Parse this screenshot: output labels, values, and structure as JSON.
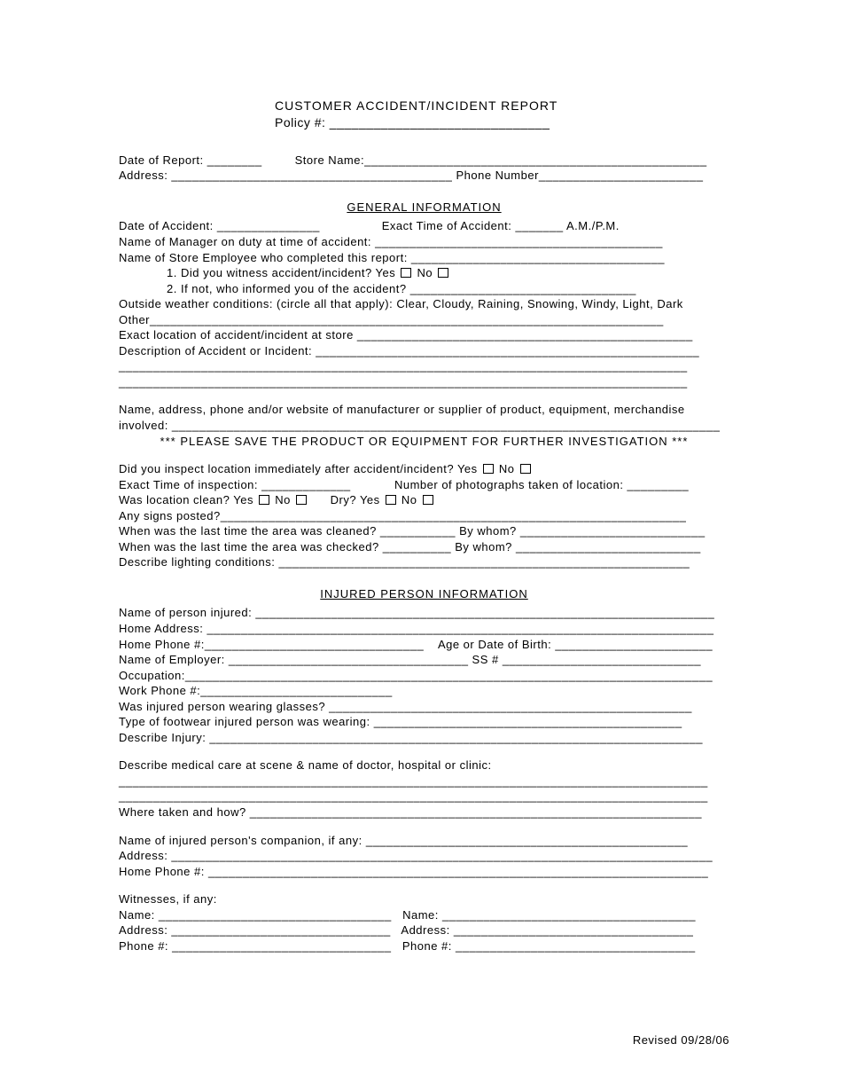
{
  "title": "CUSTOMER ACCIDENT/INCIDENT REPORT",
  "policy_label": "Policy #: ______________________________",
  "header": {
    "date_of_report": "Date of Report: ________",
    "store_name": "Store Name:__________________________________________________",
    "address": "Address: _________________________________________",
    "phone": "Phone Number________________________"
  },
  "gen_title": "GENERAL INFORMATION",
  "gen": {
    "date_accident": "Date of Accident: _______________",
    "exact_time": "Exact Time of Accident: _______ A.M./P.M.",
    "manager": "Name of Manager on duty at time of accident: __________________________________________",
    "employee": "Name of Store Employee who completed this report: _____________________________________",
    "q1_prefix": "1. Did you witness accident/incident?  Yes",
    "q1_no": "No",
    "q2": "2. If not, who informed you of the accident? _________________________________",
    "weather": "Outside weather conditions: (circle all that apply): Clear, Cloudy, Raining, Snowing, Windy, Light, Dark",
    "other": "Other___________________________________________________________________________",
    "location": "Exact location of accident/incident at store _________________________________________________",
    "desc": "Description of Accident or Incident: ________________________________________________________",
    "line1": "___________________________________________________________________________________",
    "line2": "___________________________________________________________________________________",
    "mfr1": "Name, address, phone and/or website of manufacturer or supplier of product, equipment, merchandise",
    "mfr2": "involved: ________________________________________________________________________________",
    "save": "*** PLEASE SAVE THE PRODUCT OR EQUIPMENT FOR FURTHER INVESTIGATION ***",
    "inspect_prefix": "Did you inspect location immediately after accident/incident?  Yes",
    "inspect_no": "No",
    "time_insp": "Exact Time of inspection: _____________",
    "photos": "Number of photographs taken of location: _________",
    "clean_prefix": "Was location clean?  Yes",
    "clean_no": "No",
    "dry_prefix": "Dry?  Yes",
    "dry_no": "No",
    "signs": "Any signs posted?____________________________________________________________________",
    "cleaned": "When was the last time the area was cleaned? ___________   By whom? ___________________________",
    "checked": "When was the last time the area was checked? __________   By whom? ___________________________",
    "lighting": "Describe lighting conditions: ____________________________________________________________"
  },
  "inj_title": "INJURED PERSON INFORMATION",
  "inj": {
    "name": "Name of person injured: ___________________________________________________________________",
    "addr": "Home Address: __________________________________________________________________________",
    "phone": "Home Phone #:________________________________",
    "age": "Age or Date of Birth: _______________________",
    "employer": "Name of Employer: ___________________________________  SS # _____________________________",
    "occ": "Occupation:_____________________________________________________________________________",
    "work": "Work Phone #:____________________________",
    "glasses": "Was injured person wearing glasses? _____________________________________________________",
    "footwear": "Type of footwear injured person was wearing: _____________________________________________",
    "injury": "Describe Injury: ________________________________________________________________________",
    "care": "Describe medical care at scene & name of doctor, hospital or clinic:",
    "careline1": "______________________________________________________________________________________",
    "careline2": "______________________________________________________________________________________",
    "where": "Where taken and how? __________________________________________________________________",
    "companion": "Name of injured person's companion, if any: _______________________________________________",
    "compaddr": "Address: _______________________________________________________________________________",
    "compphone": "Home Phone #: _________________________________________________________________________",
    "witnesses": "Witnesses, if any:",
    "w_name1": "Name: __________________________________",
    "w_name2": "Name: _____________________________________",
    "w_addr1": "Address: ________________________________",
    "w_addr2": "Address: ___________________________________",
    "w_phone1": "Phone #: ________________________________",
    "w_phone2": "Phone #: ___________________________________"
  },
  "footer": "Revised 09/28/06"
}
